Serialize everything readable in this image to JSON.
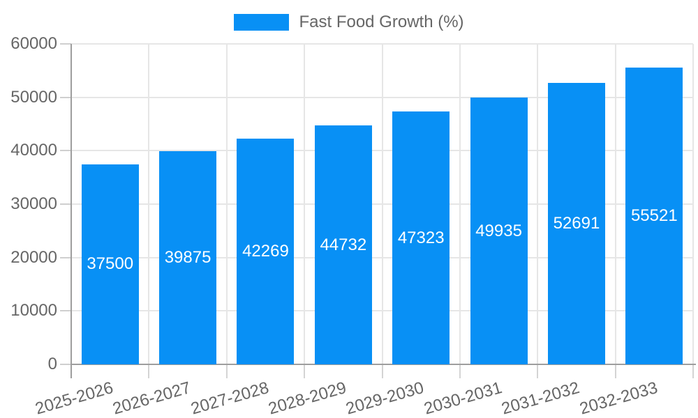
{
  "legend": {
    "label": "Fast Food Growth (%)"
  },
  "chart_data": {
    "type": "bar",
    "title": "",
    "legend_label": "Fast Food Growth (%)",
    "legend_position": "top",
    "categories": [
      "2025-2026",
      "2026-2027",
      "2027-2028",
      "2028-2029",
      "2029-2030",
      "2030-2031",
      "2031-2032",
      "2032-2033"
    ],
    "values": [
      37500,
      39875,
      42269,
      44732,
      47323,
      49935,
      52691,
      55521
    ],
    "xlabel": "",
    "ylabel": "",
    "ylim": [
      0,
      60000
    ],
    "y_tick_step": 10000,
    "y_tick_labels": [
      "0",
      "10000",
      "20000",
      "30000",
      "40000",
      "50000",
      "60000"
    ],
    "grid": true,
    "bar_color": "#0890F5",
    "bar_label_color": "#ffffff"
  }
}
